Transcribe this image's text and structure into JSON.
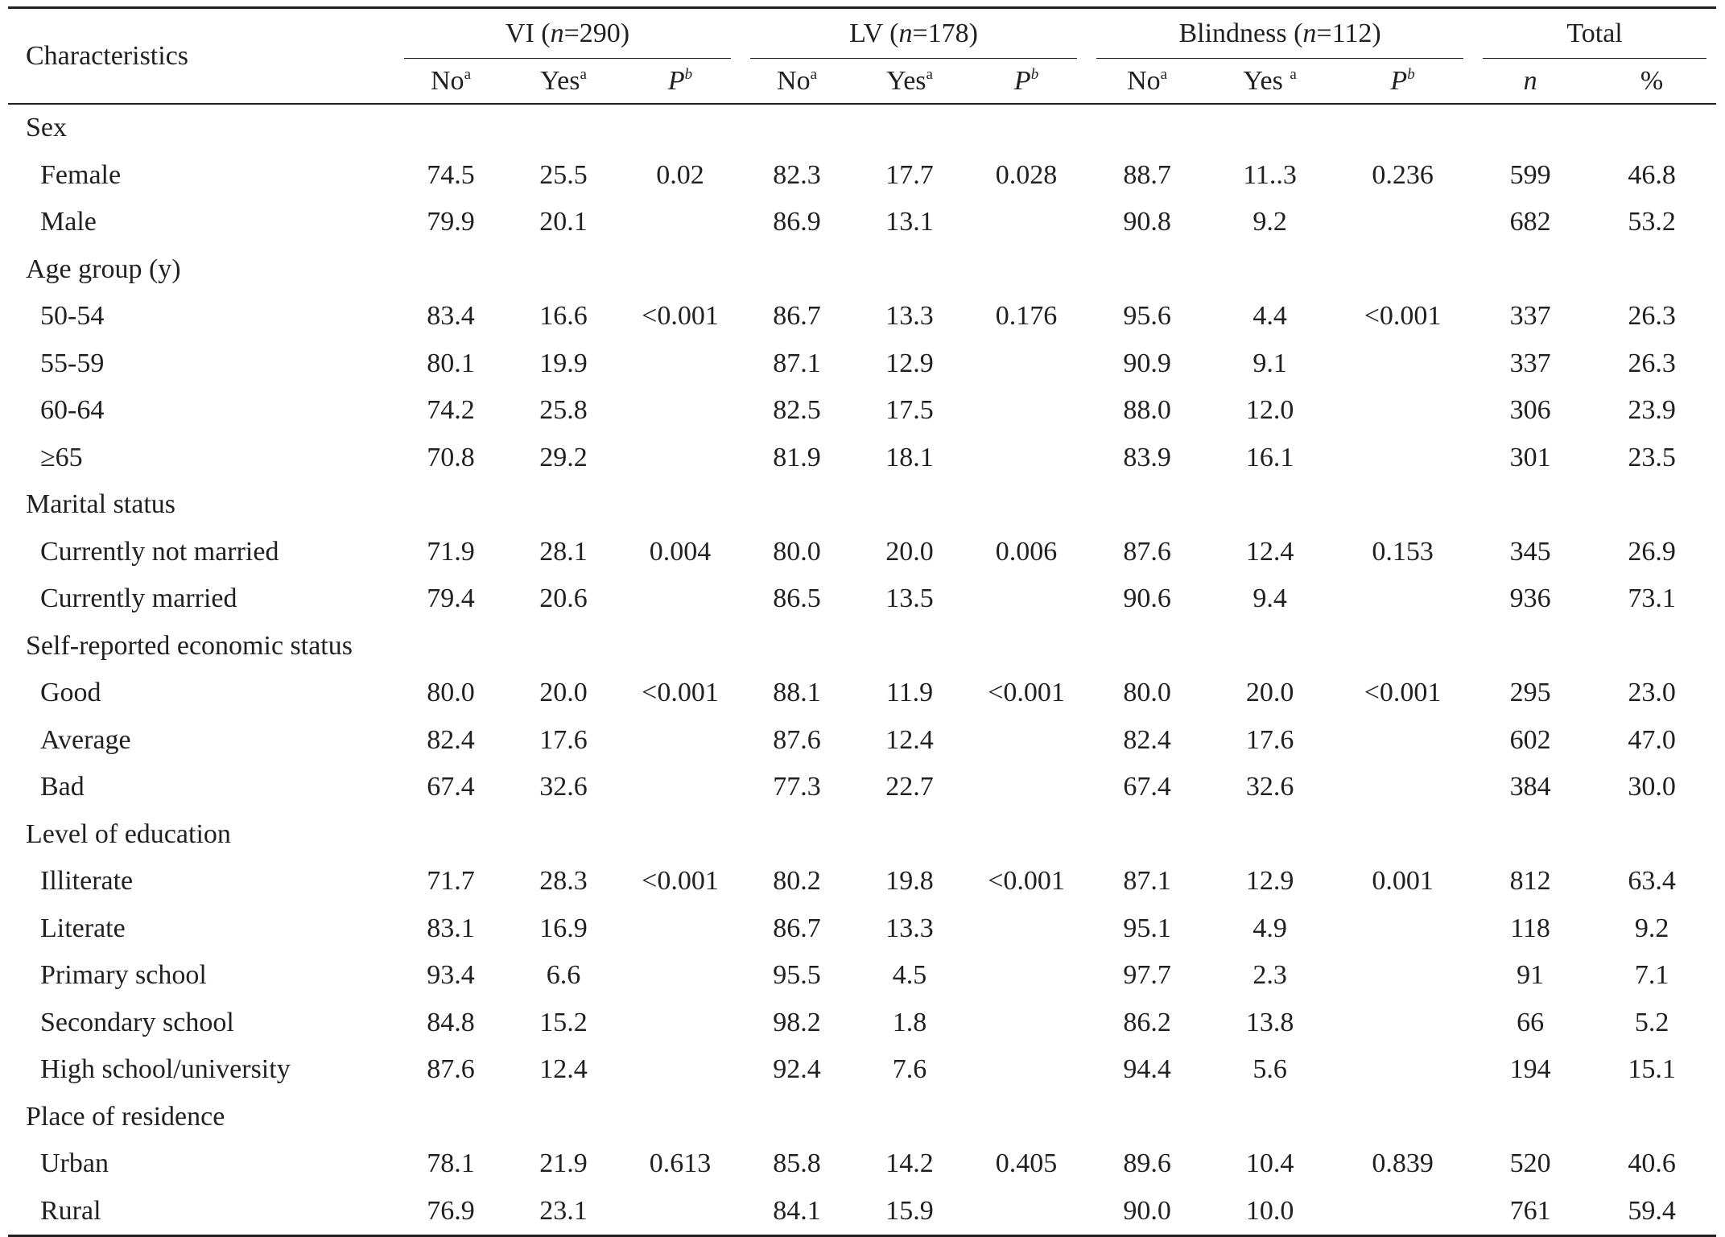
{
  "header": {
    "characteristics": "Characteristics",
    "groups": [
      {
        "name": "VI (",
        "n_label": "n",
        "n_value": "=290)"
      },
      {
        "name": "LV (",
        "n_label": "n",
        "n_value": "=178)"
      },
      {
        "name": "Blindness (",
        "n_label": "n",
        "n_value": "=112)"
      },
      {
        "name": "Total"
      }
    ],
    "sub": {
      "no": "No",
      "yes": "Yes",
      "yes_spaced": "Yes ",
      "sup_a": "a",
      "p": "P",
      "sup_b": "b",
      "n": "n",
      "pct": "%"
    }
  },
  "rows": [
    {
      "type": "category",
      "label": "Sex"
    },
    {
      "type": "item",
      "label": "Female",
      "cells": [
        "74.5",
        "25.5",
        "0.02",
        "82.3",
        "17.7",
        "0.028",
        "88.7",
        "11..3",
        "0.236",
        "599",
        "46.8"
      ]
    },
    {
      "type": "item",
      "label": "Male",
      "cells": [
        "79.9",
        "20.1",
        "",
        "86.9",
        "13.1",
        "",
        "90.8",
        "9.2",
        "",
        "682",
        "53.2"
      ]
    },
    {
      "type": "category",
      "label": "Age group (y)"
    },
    {
      "type": "item",
      "label": "50-54",
      "cells": [
        "83.4",
        "16.6",
        "<0.001",
        "86.7",
        "13.3",
        "0.176",
        "95.6",
        "4.4",
        "<0.001",
        "337",
        "26.3"
      ]
    },
    {
      "type": "item",
      "label": "55-59",
      "cells": [
        "80.1",
        "19.9",
        "",
        "87.1",
        "12.9",
        "",
        "90.9",
        "9.1",
        "",
        "337",
        "26.3"
      ]
    },
    {
      "type": "item",
      "label": "60-64",
      "cells": [
        "74.2",
        "25.8",
        "",
        "82.5",
        "17.5",
        "",
        "88.0",
        "12.0",
        "",
        "306",
        "23.9"
      ]
    },
    {
      "type": "item",
      "label": "≥65",
      "cells": [
        "70.8",
        "29.2",
        "",
        "81.9",
        "18.1",
        "",
        "83.9",
        "16.1",
        "",
        "301",
        "23.5"
      ]
    },
    {
      "type": "category",
      "label": "Marital status"
    },
    {
      "type": "item",
      "label": "Currently not married",
      "cells": [
        "71.9",
        "28.1",
        "0.004",
        "80.0",
        "20.0",
        "0.006",
        "87.6",
        "12.4",
        "0.153",
        "345",
        "26.9"
      ]
    },
    {
      "type": "item",
      "label": "Currently married",
      "cells": [
        "79.4",
        "20.6",
        "",
        "86.5",
        "13.5",
        "",
        "90.6",
        "9.4",
        "",
        "936",
        "73.1"
      ]
    },
    {
      "type": "category",
      "label": "Self-reported economic status"
    },
    {
      "type": "item",
      "label": "Good",
      "cells": [
        "80.0",
        "20.0",
        "<0.001",
        "88.1",
        "11.9",
        "<0.001",
        "80.0",
        "20.0",
        "<0.001",
        "295",
        "23.0"
      ]
    },
    {
      "type": "item",
      "label": "Average",
      "cells": [
        "82.4",
        "17.6",
        "",
        "87.6",
        "12.4",
        "",
        "82.4",
        "17.6",
        "",
        "602",
        "47.0"
      ]
    },
    {
      "type": "item",
      "label": "Bad",
      "cells": [
        "67.4",
        "32.6",
        "",
        "77.3",
        "22.7",
        "",
        "67.4",
        "32.6",
        "",
        "384",
        "30.0"
      ]
    },
    {
      "type": "category",
      "label": "Level of education"
    },
    {
      "type": "item",
      "label": "Illiterate",
      "cells": [
        "71.7",
        "28.3",
        "<0.001",
        "80.2",
        "19.8",
        "<0.001",
        "87.1",
        "12.9",
        "0.001",
        "812",
        "63.4"
      ]
    },
    {
      "type": "item",
      "label": "Literate",
      "cells": [
        "83.1",
        "16.9",
        "",
        "86.7",
        "13.3",
        "",
        "95.1",
        "4.9",
        "",
        "118",
        "9.2"
      ]
    },
    {
      "type": "item",
      "label": "Primary school",
      "cells": [
        "93.4",
        "6.6",
        "",
        "95.5",
        "4.5",
        "",
        "97.7",
        "2.3",
        "",
        "91",
        "7.1"
      ]
    },
    {
      "type": "item",
      "label": "Secondary school",
      "cells": [
        "84.8",
        "15.2",
        "",
        "98.2",
        "1.8",
        "",
        "86.2",
        "13.8",
        "",
        "66",
        "5.2"
      ]
    },
    {
      "type": "item",
      "label": "High school/university",
      "cells": [
        "87.6",
        "12.4",
        "",
        "92.4",
        "7.6",
        "",
        "94.4",
        "5.6",
        "",
        "194",
        "15.1"
      ]
    },
    {
      "type": "category",
      "label": "Place of residence"
    },
    {
      "type": "item",
      "label": "Urban",
      "cells": [
        "78.1",
        "21.9",
        "0.613",
        "85.8",
        "14.2",
        "0.405",
        "89.6",
        "10.4",
        "0.839",
        "520",
        "40.6"
      ]
    },
    {
      "type": "item",
      "label": "Rural",
      "cells": [
        "76.9",
        "23.1",
        "",
        "84.1",
        "15.9",
        "",
        "90.0",
        "10.0",
        "",
        "761",
        "59.4"
      ]
    }
  ]
}
